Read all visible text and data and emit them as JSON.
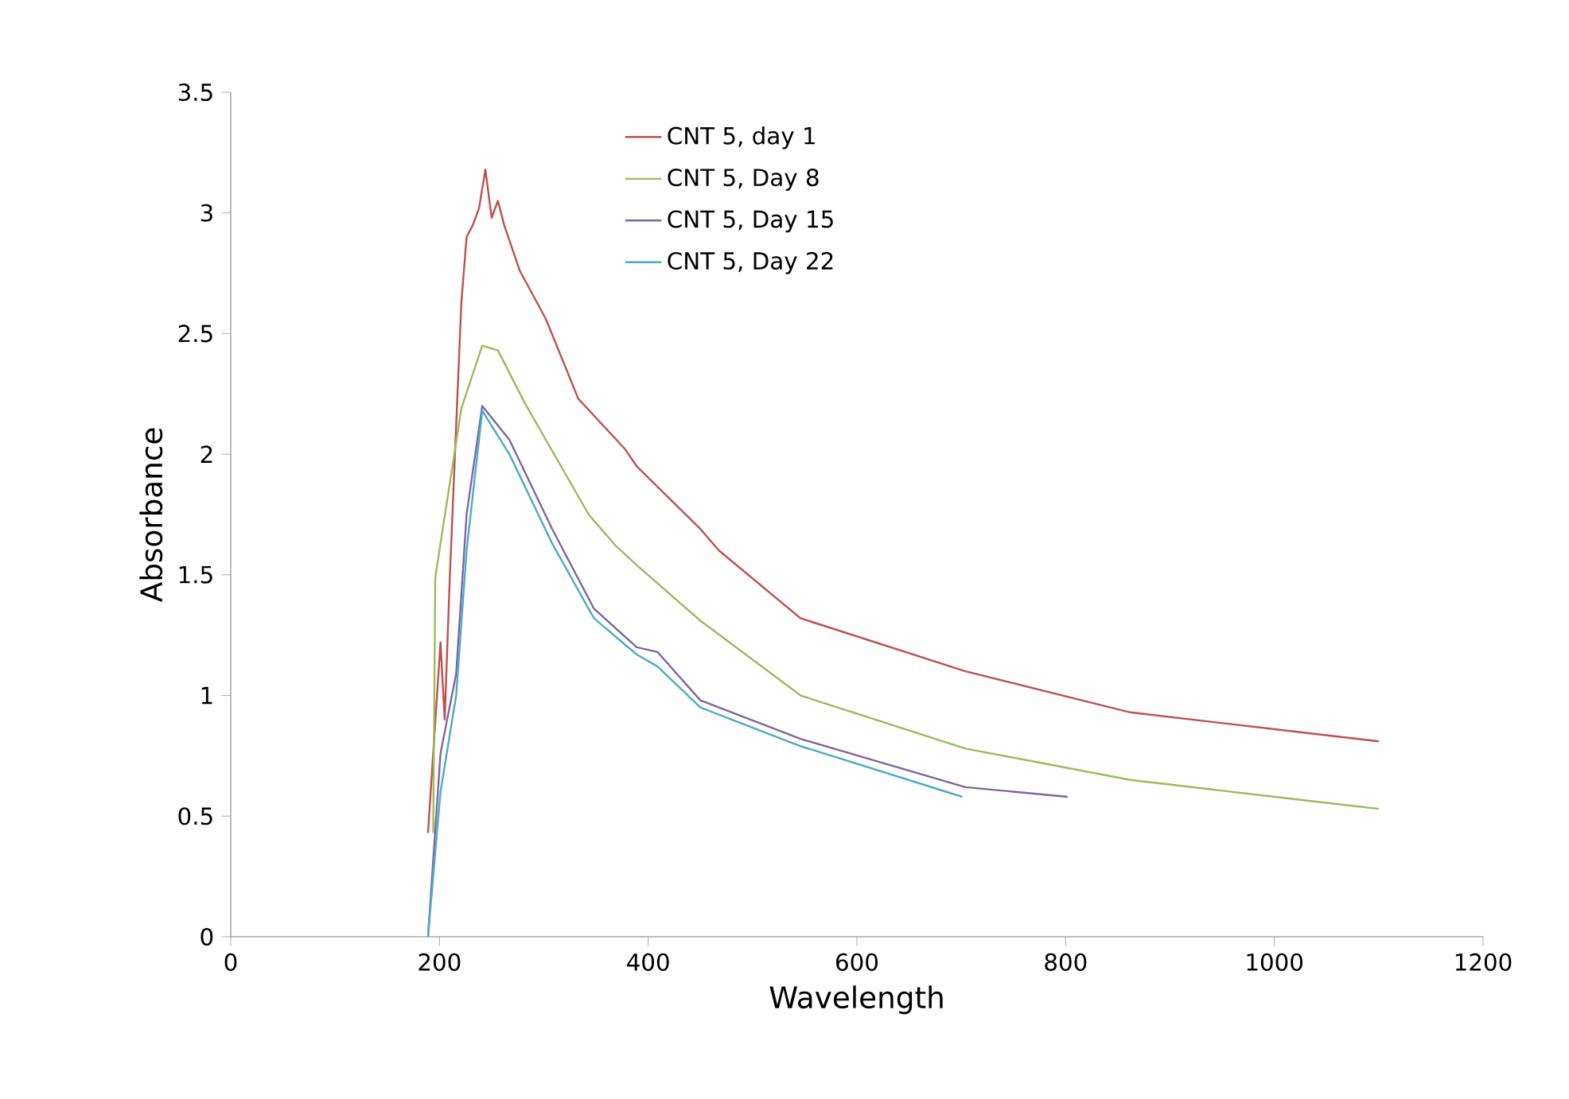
{
  "chart_data": {
    "type": "line",
    "xlabel": "Wavelength",
    "ylabel": "Absorbance",
    "xlim": [
      0,
      1200
    ],
    "xticks": [
      0,
      200,
      400,
      600,
      800,
      1000,
      1200
    ],
    "ylim": [
      0,
      3.5
    ],
    "yticks": [
      0,
      0.5,
      1,
      1.5,
      2,
      2.5,
      3,
      3.5
    ],
    "grid": false,
    "legend": "top",
    "line_style": "solid",
    "marker": "none",
    "series": [
      {
        "name": "CNT 5, day 1",
        "color": "#c0504d",
        "x": [
          189,
          201,
          205,
          210,
          221,
          226,
          232,
          238,
          244,
          250,
          256,
          262,
          277,
          302,
          333,
          378,
          389,
          450,
          468,
          546,
          704,
          862,
          1020,
          1100
        ],
        "values": [
          0.43,
          1.22,
          0.9,
          1.5,
          2.63,
          2.9,
          2.95,
          3.02,
          3.18,
          2.98,
          3.05,
          2.95,
          2.76,
          2.56,
          2.23,
          2.02,
          1.95,
          1.69,
          1.6,
          1.32,
          1.1,
          0.93,
          0.85,
          0.81
        ]
      },
      {
        "name": "CNT 5, Day 8",
        "color": "#9bbb59",
        "x": [
          194,
          196,
          221,
          241,
          256,
          282,
          343,
          369,
          389,
          450,
          546,
          704,
          862,
          1020,
          1100
        ],
        "values": [
          0.43,
          1.49,
          2.19,
          2.45,
          2.43,
          2.21,
          1.75,
          1.62,
          1.54,
          1.31,
          1.0,
          0.78,
          0.65,
          0.57,
          0.53
        ]
      },
      {
        "name": "CNT 5, Day 15",
        "color": "#8064a2",
        "x": [
          189,
          201,
          216,
          226,
          241,
          267,
          308,
          348,
          389,
          409,
          450,
          546,
          704,
          802
        ],
        "values": [
          0,
          0.76,
          1.09,
          1.75,
          2.2,
          2.06,
          1.69,
          1.36,
          1.2,
          1.18,
          0.98,
          0.82,
          0.62,
          0.58
        ]
      },
      {
        "name": "CNT 5, Day 22",
        "color": "#4bacc6",
        "x": [
          189,
          201,
          216,
          226,
          241,
          267,
          308,
          348,
          389,
          409,
          450,
          546,
          701
        ],
        "values": [
          0,
          0.6,
          1.0,
          1.6,
          2.18,
          2.0,
          1.63,
          1.32,
          1.17,
          1.12,
          0.95,
          0.79,
          0.58
        ]
      }
    ]
  }
}
